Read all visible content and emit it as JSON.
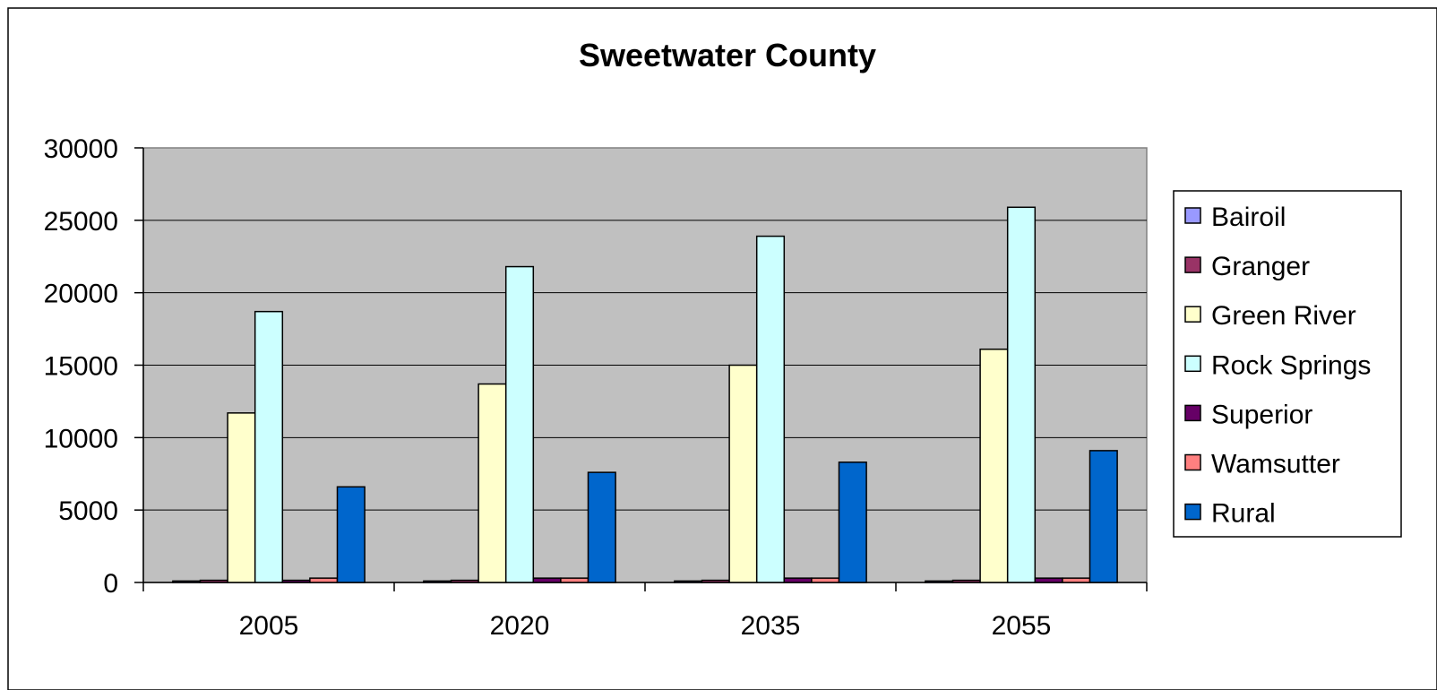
{
  "chart_data": {
    "type": "bar",
    "title": "Sweetwater County",
    "xlabel": "",
    "ylabel": "",
    "ylim": [
      0,
      30000
    ],
    "yticks": [
      0,
      5000,
      10000,
      15000,
      20000,
      25000,
      30000
    ],
    "grid": true,
    "legend_position": "right",
    "categories": [
      "2005",
      "2020",
      "2035",
      "2055"
    ],
    "series": [
      {
        "name": "Bairoil",
        "color": "#9999ff",
        "values": [
          100,
          100,
          100,
          100
        ]
      },
      {
        "name": "Granger",
        "color": "#993366",
        "values": [
          150,
          150,
          150,
          150
        ]
      },
      {
        "name": "Green River",
        "color": "#ffffcc",
        "values": [
          11700,
          13700,
          15000,
          16100
        ]
      },
      {
        "name": "Rock Springs",
        "color": "#ccffff",
        "values": [
          18700,
          21800,
          23900,
          25900
        ]
      },
      {
        "name": "Superior",
        "color": "#660066",
        "values": [
          150,
          300,
          300,
          300
        ]
      },
      {
        "name": "Wamsutter",
        "color": "#ff8080",
        "values": [
          300,
          300,
          300,
          300
        ]
      },
      {
        "name": "Rural",
        "color": "#0066cc",
        "values": [
          6600,
          7600,
          8300,
          9100
        ]
      }
    ]
  }
}
